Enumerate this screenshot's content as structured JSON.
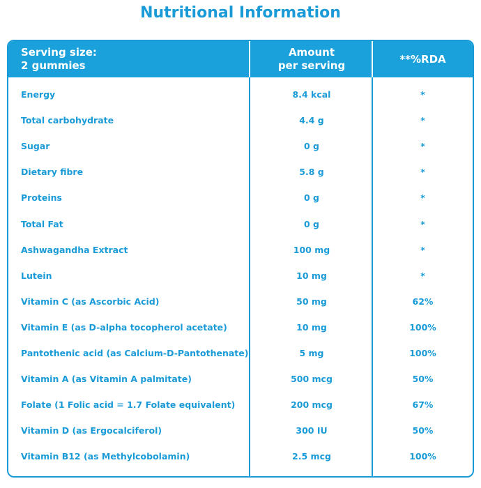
{
  "title": "Nutritional Information",
  "header": {
    "serving": [
      "Serving size:",
      "2 gummies"
    ],
    "amount": [
      "Amount",
      "per serving"
    ],
    "rda": [
      "**%RDA"
    ]
  },
  "rows": [
    [
      "Energy",
      "8.4 kcal",
      "*"
    ],
    [
      "Total carbohydrate",
      "4.4 g",
      "*"
    ],
    [
      "Sugar",
      "0 g",
      "*"
    ],
    [
      "Dietary fibre",
      "5.8 g",
      "*"
    ],
    [
      "Proteins",
      "0 g",
      "*"
    ],
    [
      "Total Fat",
      "0 g",
      "*"
    ],
    [
      "Ashwagandha Extract",
      "100 mg",
      "*"
    ],
    [
      "Lutein",
      "10 mg",
      "*"
    ],
    [
      "Vitamin C (as Ascorbic Acid)",
      "50 mg",
      "62%"
    ],
    [
      "Vitamin E (as D-alpha tocopherol acetate)",
      "10 mg",
      "100%"
    ],
    [
      "Pantothenic acid (as Calcium-D-Pantothenate)",
      "5 mg",
      "100%"
    ],
    [
      "Vitamin A (as Vitamin A palmitate)",
      "500 mcg",
      "50%"
    ],
    [
      "Folate (1 Folic acid = 1.7 Folate equivalent)",
      "200 mcg",
      "67%"
    ],
    [
      "Vitamin D (as Ergocalciferol)",
      "300 IU",
      "50%"
    ],
    [
      "Vitamin B12 (as Methylcobolamin)",
      "2.5 mcg",
      "100%"
    ]
  ]
}
